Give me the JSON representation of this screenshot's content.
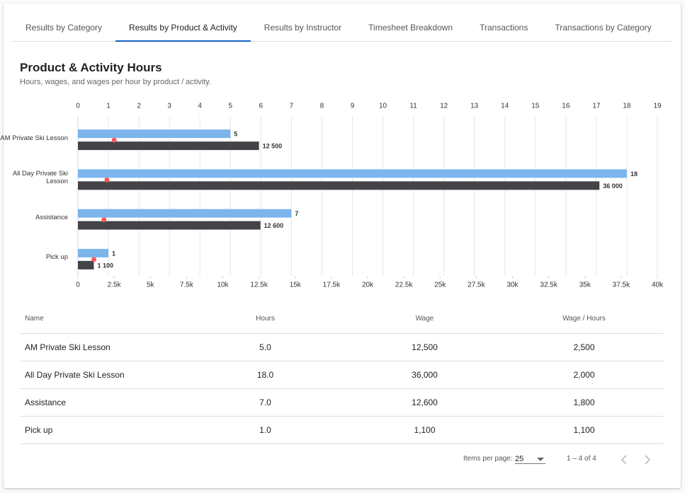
{
  "tabs": [
    "Results by Category",
    "Results by Product & Activity",
    "Results by Instructor",
    "Timesheet Breakdown",
    "Transactions",
    "Transactions by Category"
  ],
  "active_tab": 1,
  "chart_data": {
    "type": "bar",
    "title": "Product & Activity Hours",
    "subtitle": "Hours, wages, and wages per hour by product / activity.",
    "categories": [
      "AM Private Ski Lesson",
      "All Day Private Ski Lesson",
      "Assistance",
      "Pick up"
    ],
    "series": [
      {
        "color": "#7cb5ec",
        "values": [
          5,
          18,
          7,
          1
        ]
      },
      {
        "color": "#434348",
        "axis": "x2",
        "values": [
          12500,
          36000,
          12600,
          1100
        ],
        "value_labels": [
          "12 500",
          "36 000",
          "12 600",
          "1 100"
        ]
      },
      {
        "type": "scatter",
        "color": "#f45b5b",
        "axis": "x2",
        "values": [
          2500,
          2000,
          1800,
          1100
        ]
      }
    ],
    "xlim": [
      0,
      19
    ],
    "xticks": [
      0,
      1,
      2,
      3,
      4,
      5,
      6,
      7,
      8,
      9,
      10,
      11,
      12,
      13,
      14,
      15,
      16,
      17,
      18,
      19
    ],
    "x2lim": [
      0,
      40000
    ],
    "x2ticks": [
      0,
      {
        "value": 2500,
        "label": "2.5k"
      },
      {
        "value": 5000,
        "label": "5k"
      },
      {
        "value": 7500,
        "label": "7.5k"
      },
      {
        "value": 10000,
        "label": "10k"
      },
      {
        "value": 12500,
        "label": "12.5k"
      },
      {
        "value": 15000,
        "label": "15k"
      },
      {
        "value": 17500,
        "label": "17.5k"
      },
      {
        "value": 20000,
        "label": "20k"
      },
      {
        "value": 22500,
        "label": "22.5k"
      },
      {
        "value": 25000,
        "label": "25k"
      },
      {
        "value": 27500,
        "label": "27.5k"
      },
      {
        "value": 30000,
        "label": "30k"
      },
      {
        "value": 32500,
        "label": "32.5k"
      },
      {
        "value": 35000,
        "label": "35k"
      },
      {
        "value": 37500,
        "label": "37.5k"
      },
      {
        "value": 40000,
        "label": "40k"
      }
    ],
    "grid": true
  },
  "table": {
    "columns": [
      "Name",
      "Hours",
      "Wage",
      "Wage / Hours"
    ],
    "rows": [
      [
        "AM Private Ski Lesson",
        "5.0",
        "12,500",
        "2,500"
      ],
      [
        "All Day Private Ski Lesson",
        "18.0",
        "36,000",
        "2,000"
      ],
      [
        "Assistance",
        "7.0",
        "12,600",
        "1,800"
      ],
      [
        "Pick up",
        "1.0",
        "1,100",
        "1,100"
      ]
    ]
  },
  "pagination": {
    "items_per_page_label": "Items per page:",
    "items_per_page": "25",
    "range": "1 – 4 of 4"
  }
}
